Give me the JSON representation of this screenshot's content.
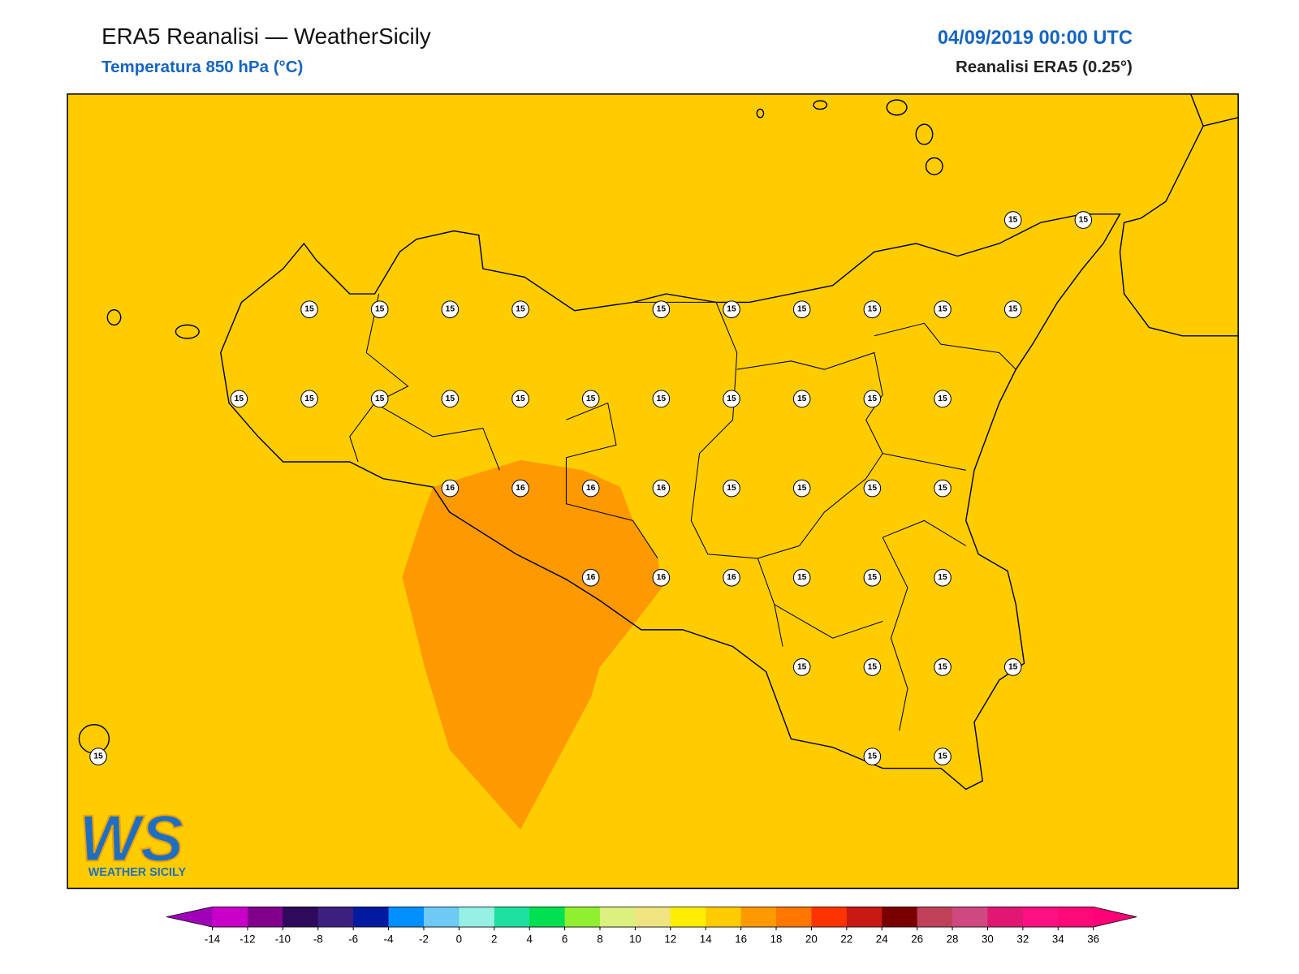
{
  "header": {
    "title": "ERA5 Reanalisi — WeatherSicily",
    "subtitle": "Temperatura 850 hPa (°C)",
    "date": "04/09/2019 00:00 UTC",
    "source": "Reanalisi ERA5 (0.25°)"
  },
  "grid_points": [
    [
      null,
      null,
      null,
      null,
      null,
      null,
      null,
      null,
      null,
      null,
      null,
      null,
      null,
      15,
      15
    ],
    [
      null,
      null,
      null,
      15,
      15,
      15,
      15,
      null,
      15,
      15,
      15,
      15,
      15,
      15,
      null
    ],
    [
      null,
      null,
      15,
      15,
      15,
      15,
      15,
      15,
      15,
      15,
      15,
      15,
      15,
      null,
      null
    ],
    [
      null,
      null,
      null,
      null,
      null,
      16,
      16,
      16,
      16,
      15,
      15,
      15,
      15,
      null,
      null
    ],
    [
      null,
      null,
      null,
      null,
      null,
      null,
      null,
      16,
      16,
      16,
      15,
      15,
      15,
      null,
      null
    ],
    [
      null,
      null,
      null,
      null,
      null,
      null,
      null,
      null,
      null,
      null,
      15,
      15,
      15,
      15,
      null
    ],
    [
      15,
      null,
      null,
      null,
      null,
      null,
      null,
      null,
      null,
      null,
      null,
      15,
      15,
      null,
      null
    ]
  ],
  "colorbar": {
    "ticks": [
      -14,
      -12,
      -10,
      -8,
      -6,
      -4,
      -2,
      0,
      2,
      4,
      6,
      8,
      10,
      12,
      14,
      16,
      18,
      20,
      22,
      24,
      26,
      28,
      30,
      32,
      34,
      36
    ],
    "under": "#a000b8",
    "colors": [
      "#c800c8",
      "#80008c",
      "#2e0a5c",
      "#3c2080",
      "#001aa0",
      "#0090ff",
      "#6ccaf4",
      "#96f0e4",
      "#1ee0a0",
      "#00e050",
      "#90f030",
      "#dcf080",
      "#f0e480",
      "#ffee00",
      "#ffcc00",
      "#ff9900",
      "#ff7700",
      "#ff3300",
      "#c81a12",
      "#7a0000",
      "#c0405a",
      "#d04880",
      "#e01874",
      "#ff1080",
      "#ff0878"
    ],
    "over": "#ff0078"
  },
  "logo": {
    "mark": "WS",
    "text": "WEATHER SICILY"
  }
}
